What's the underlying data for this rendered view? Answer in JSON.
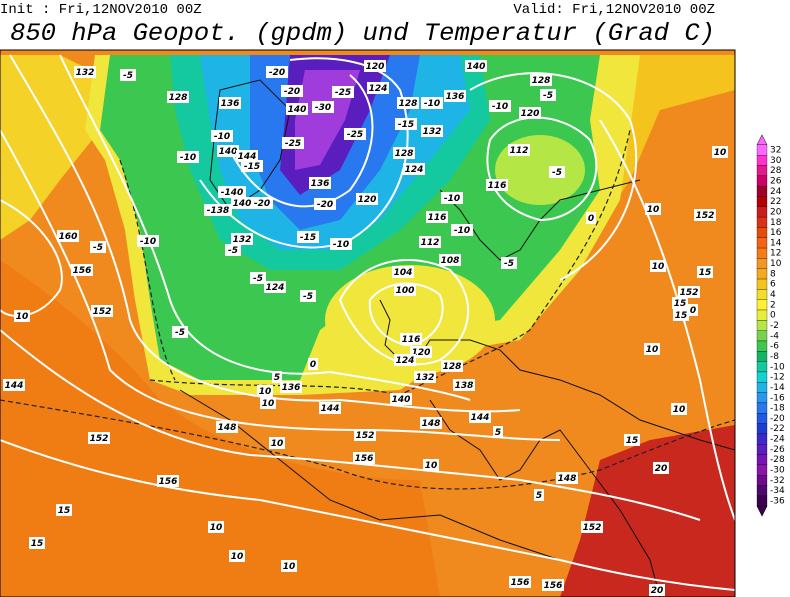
{
  "header": {
    "init": "Init : Fri,12NOV2010 00Z",
    "valid": "Valid: Fri,12NOV2010 00Z",
    "title": "850 hPa Geopot. (gpdm) und Temperatur (Grad C)"
  },
  "colorbar": {
    "levels": [
      32,
      30,
      28,
      26,
      24,
      22,
      20,
      18,
      16,
      14,
      12,
      10,
      8,
      6,
      4,
      2,
      0,
      -2,
      -4,
      -6,
      -8,
      -10,
      -12,
      -14,
      -16,
      -18,
      -20,
      -22,
      -24,
      -26,
      -28,
      -30,
      -32,
      -34,
      -36
    ],
    "colors": [
      "#ff66ff",
      "#ff33cc",
      "#e6198c",
      "#cc0066",
      "#a0002a",
      "#b40000",
      "#c81e1e",
      "#dc3214",
      "#e64b0a",
      "#f06414",
      "#f57d14",
      "#f5961e",
      "#f5aa1e",
      "#f5c31e",
      "#f5dc28",
      "#fff032",
      "#e6f03c",
      "#b4e646",
      "#78d250",
      "#3cc850",
      "#14b464",
      "#14c8a0",
      "#14d2d2",
      "#1eb4e6",
      "#2896f0",
      "#2878f0",
      "#1e5ae6",
      "#1e3cd2",
      "#3c28c8",
      "#5a1ebe",
      "#7814b4",
      "#8c14aa",
      "#6e0a8c",
      "#50086e",
      "#3c0050"
    ]
  },
  "map_labels": [
    "132",
    "-5",
    "128",
    "136",
    "-20",
    "120",
    "124",
    "-25",
    "-30",
    "140",
    "-20",
    "128",
    "-10",
    "136",
    "-10",
    "140",
    "128",
    "-5",
    "120",
    "-10",
    "140",
    "-10",
    "-25",
    "144",
    "-15",
    "-25",
    "-15",
    "132",
    "128",
    "124",
    "112",
    "-5",
    "116",
    "136",
    "-140",
    "-138",
    "140",
    "-20",
    "-20",
    "120",
    "-10",
    "116",
    "-10",
    "0",
    "10",
    "152",
    "10",
    "160",
    "-5",
    "156",
    "-10",
    "132",
    "-5",
    "-15",
    "-10",
    "112",
    "108",
    "-5",
    "104",
    "100",
    "124",
    "-5",
    "-5",
    "152",
    "10",
    "-5",
    "10",
    "15",
    "152",
    "15",
    "15",
    "0",
    "10",
    "144",
    "0",
    "5",
    "136",
    "10",
    "10",
    "140",
    "132",
    "128",
    "116",
    "120",
    "124",
    "138",
    "144",
    "148",
    "148",
    "144",
    "152",
    "10",
    "152",
    "156",
    "10",
    "5",
    "148",
    "15",
    "10",
    "20",
    "156",
    "15",
    "15",
    "10",
    "10",
    "10",
    "5",
    "152",
    "156",
    "156",
    "20"
  ]
}
